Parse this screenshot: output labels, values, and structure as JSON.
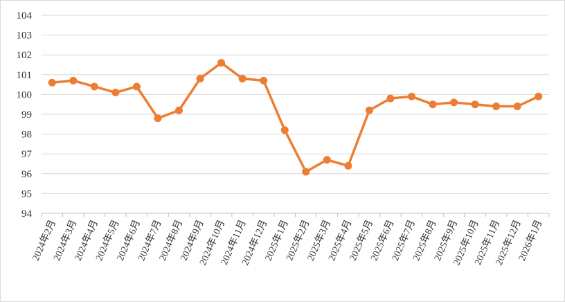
{
  "chart_data": {
    "type": "line",
    "title": "",
    "xlabel": "",
    "ylabel": "",
    "ylim": [
      94,
      104
    ],
    "ytick_step": 1,
    "grid": true,
    "legend": "none",
    "line_color": "#ED7D31",
    "grid_color": "#D9D9D9",
    "categories": [
      "2024年2月",
      "2024年3月",
      "2024年4月",
      "2024年5月",
      "2024年6月",
      "2024年7月",
      "2024年8月",
      "2024年9月",
      "2024年10月",
      "2024年11月",
      "2024年12月",
      "2025年1月",
      "2025年2月",
      "2025年3月",
      "2025年4月",
      "2025年5月",
      "2025年6月",
      "2025年7月",
      "2025年8月",
      "2025年9月",
      "2025年10月",
      "2025年11月",
      "2025年12月",
      "2026年1月"
    ],
    "values": [
      100.6,
      100.7,
      100.4,
      100.1,
      100.4,
      98.8,
      99.2,
      100.8,
      101.6,
      100.8,
      100.7,
      98.2,
      96.1,
      96.7,
      96.4,
      99.2,
      99.8,
      99.9,
      99.5,
      99.6,
      99.5,
      99.4,
      99.4,
      99.9
    ]
  }
}
